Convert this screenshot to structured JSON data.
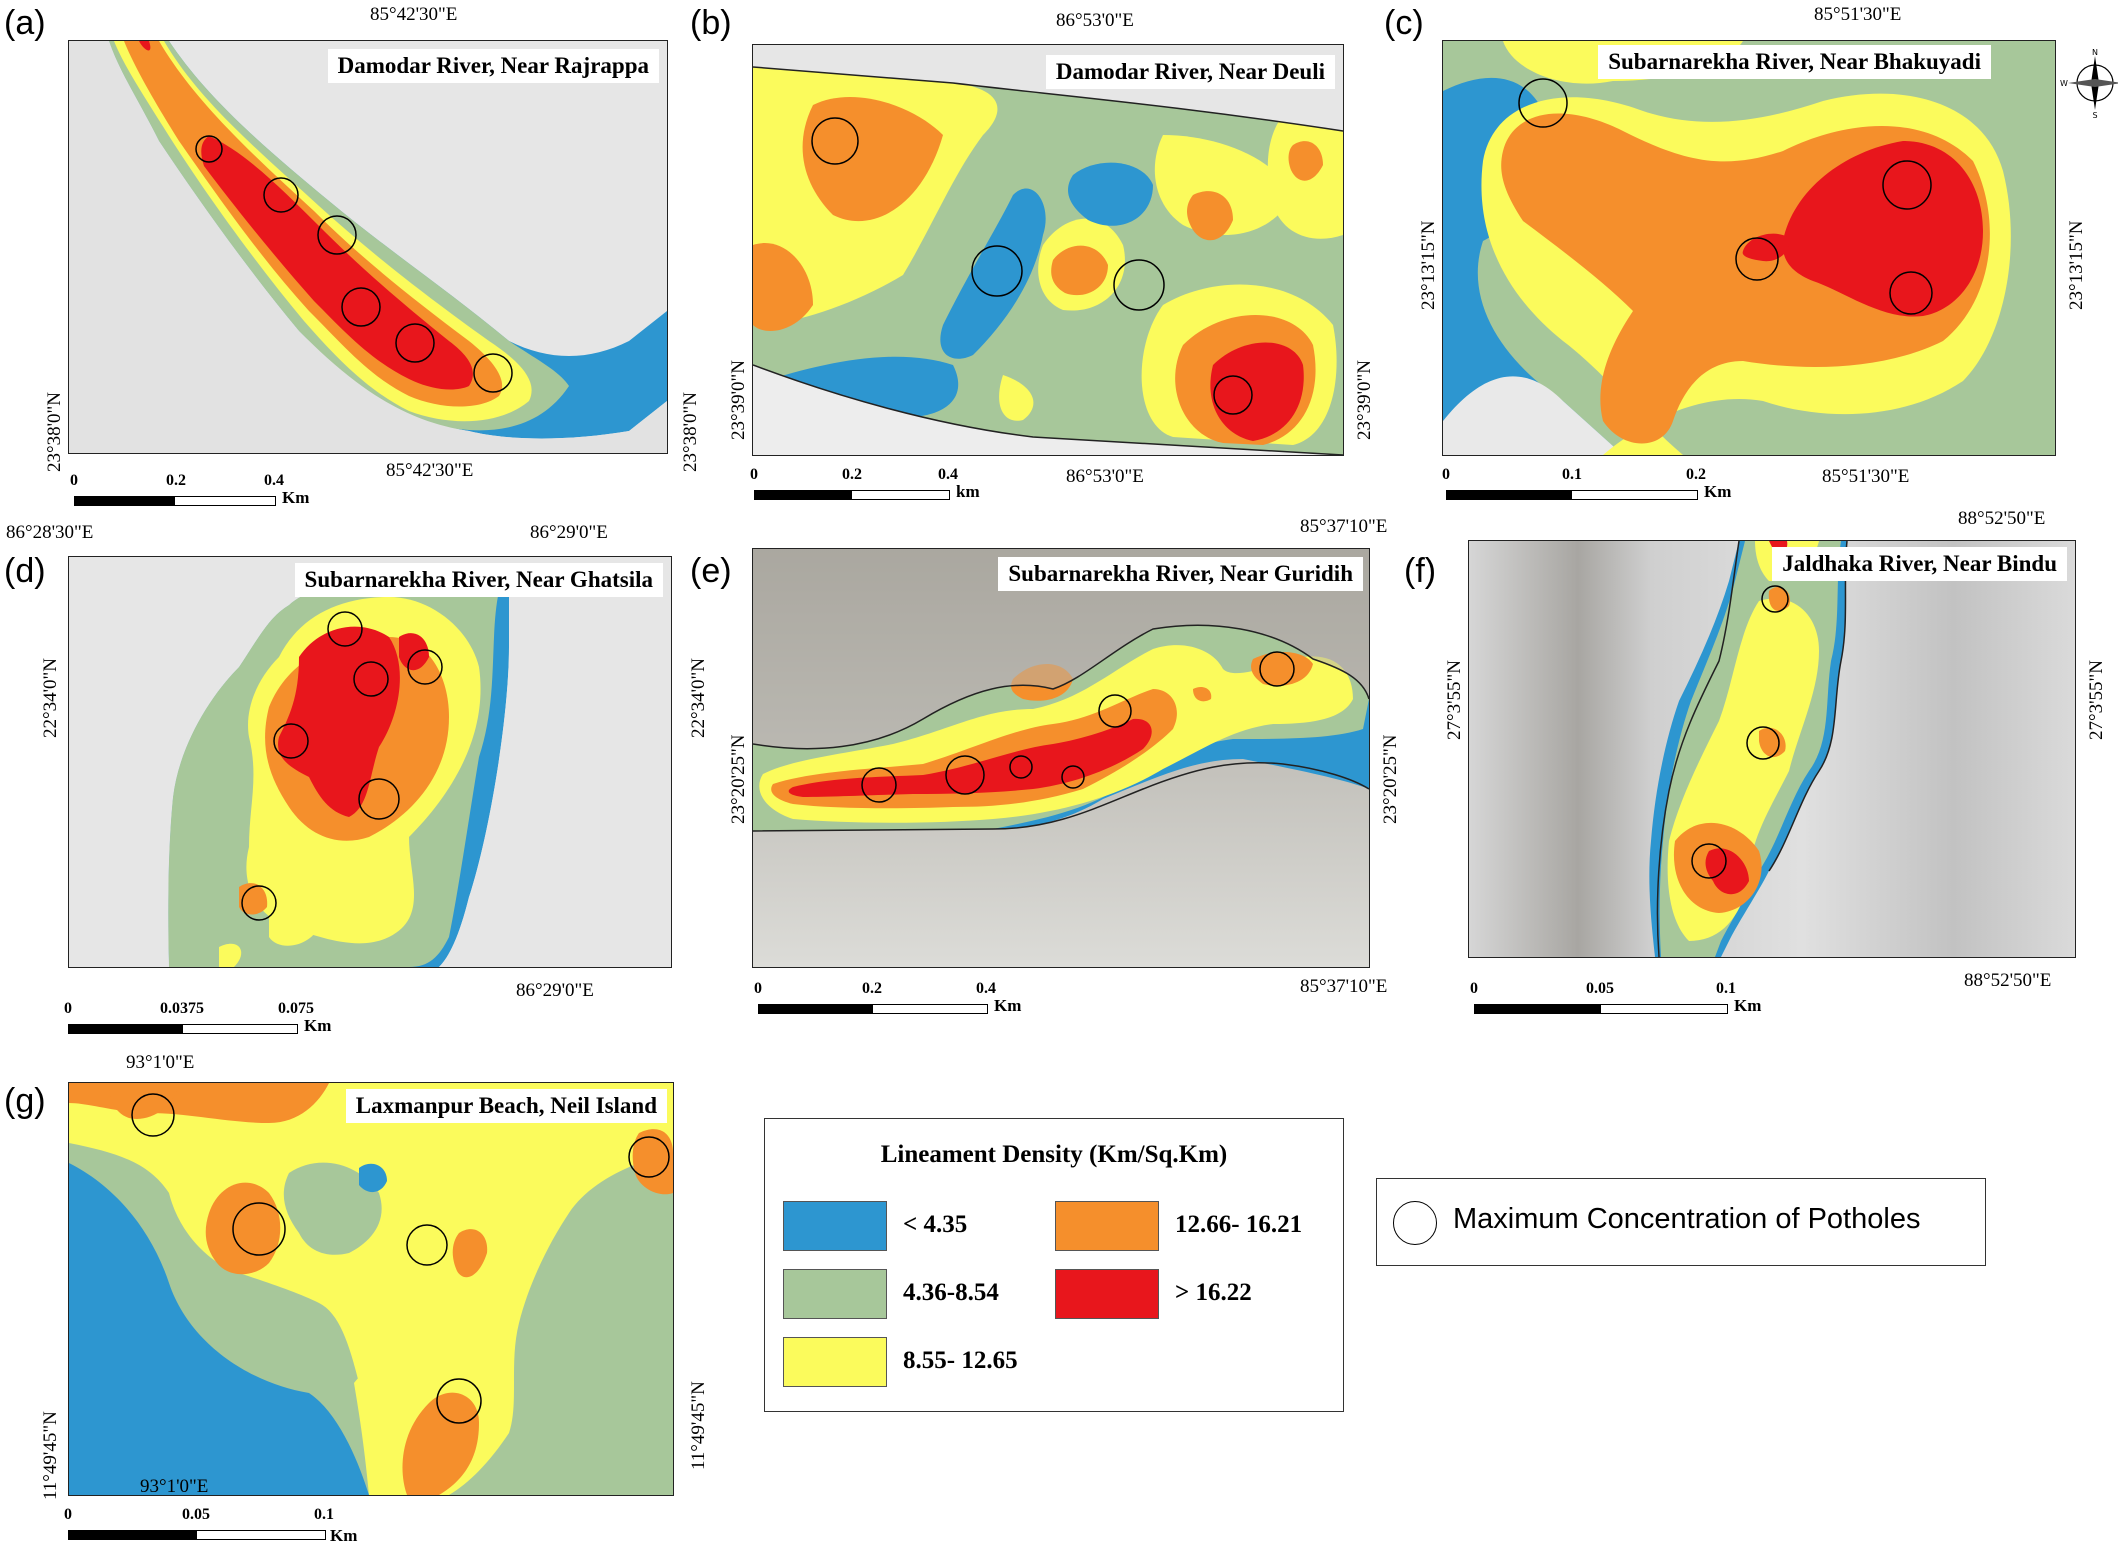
{
  "panels": {
    "a": {
      "letter": "(a)",
      "title": "Damodar River, Near Rajrappa",
      "top_coord": "85°42'30\"E",
      "bottom_coord": "85°42'30\"E",
      "left_coord": "23°38'0\"N",
      "right_coord": "23°38'0\"N",
      "scale_ticks": [
        "0",
        "0.2",
        "0.4"
      ],
      "scale_unit": "Km"
    },
    "b": {
      "letter": "(b)",
      "title": "Damodar River, Near Deuli",
      "top_coord": "86°53'0\"E",
      "bottom_coord": "86°53'0\"E",
      "left_coord": "23°39'0\"N",
      "right_coord": "23°39'0\"N",
      "scale_ticks": [
        "0",
        "0.2",
        "0.4"
      ],
      "scale_unit": "km"
    },
    "c": {
      "letter": "(c)",
      "title": "Subarnarekha River, Near Bhakuyadi",
      "top_coord": "85°51'30\"E",
      "bottom_coord": "85°51'30\"E",
      "left_coord": "23°13'15\"N",
      "right_coord": "23°13'15\"N",
      "scale_ticks": [
        "0",
        "0.1",
        "0.2"
      ],
      "scale_unit": "Km"
    },
    "d": {
      "letter": "(d)",
      "title": "Subarnarekha River, Near Ghatsila",
      "top_coord_left": "86°28'30\"E",
      "top_coord_right": "86°29'0\"E",
      "bottom_coord": "86°29'0\"E",
      "left_coord": "22°34'0\"N",
      "right_coord": "22°34'0\"N",
      "scale_ticks": [
        "0",
        "0.0375",
        "0.075"
      ],
      "scale_unit": "Km"
    },
    "e": {
      "letter": "(e)",
      "title": "Subarnarekha River, Near Guridih",
      "top_coord": "85°37'10\"E",
      "bottom_coord": "85°37'10\"E",
      "left_coord": "23°20'25\"N",
      "right_coord": "23°20'25\"N",
      "scale_ticks": [
        "0",
        "0.2",
        "0.4"
      ],
      "scale_unit": "Km"
    },
    "f": {
      "letter": "(f)",
      "title": "Jaldhaka River, Near Bindu",
      "top_coord": "88°52'50\"E",
      "bottom_coord": "88°52'50\"E",
      "left_coord": "27°3'55\"N",
      "right_coord": "27°3'55\"N",
      "scale_ticks": [
        "0",
        "0.05",
        "0.1"
      ],
      "scale_unit": "Km"
    },
    "g": {
      "letter": "(g)",
      "title": "Laxmanpur Beach, Neil Island",
      "top_coord": "93°1'0\"E",
      "bottom_coord": "93°1'0\"E",
      "left_coord": "11°49'45\"N",
      "right_coord": "11°49'45\"N",
      "scale_ticks": [
        "0",
        "0.05",
        "0.1"
      ],
      "scale_unit": "Km"
    }
  },
  "legend": {
    "title": "Lineament Density (Km/Sq.Km)",
    "classes": [
      {
        "label": "< 4.35",
        "color": "#2d96d0"
      },
      {
        "label": "4.36-8.54",
        "color": "#a7c79a"
      },
      {
        "label": "8.55- 12.65",
        "color": "#fbfb5c"
      },
      {
        "label": "12.66- 16.21",
        "color": "#f58f2c"
      },
      {
        "label": "> 16.22",
        "color": "#e8161c"
      }
    ]
  },
  "potholes": {
    "label": "Maximum Concentration of Potholes"
  },
  "compass": {
    "icon": "north-arrow-compass-icon",
    "directions": [
      "N",
      "E",
      "S",
      "W"
    ]
  }
}
